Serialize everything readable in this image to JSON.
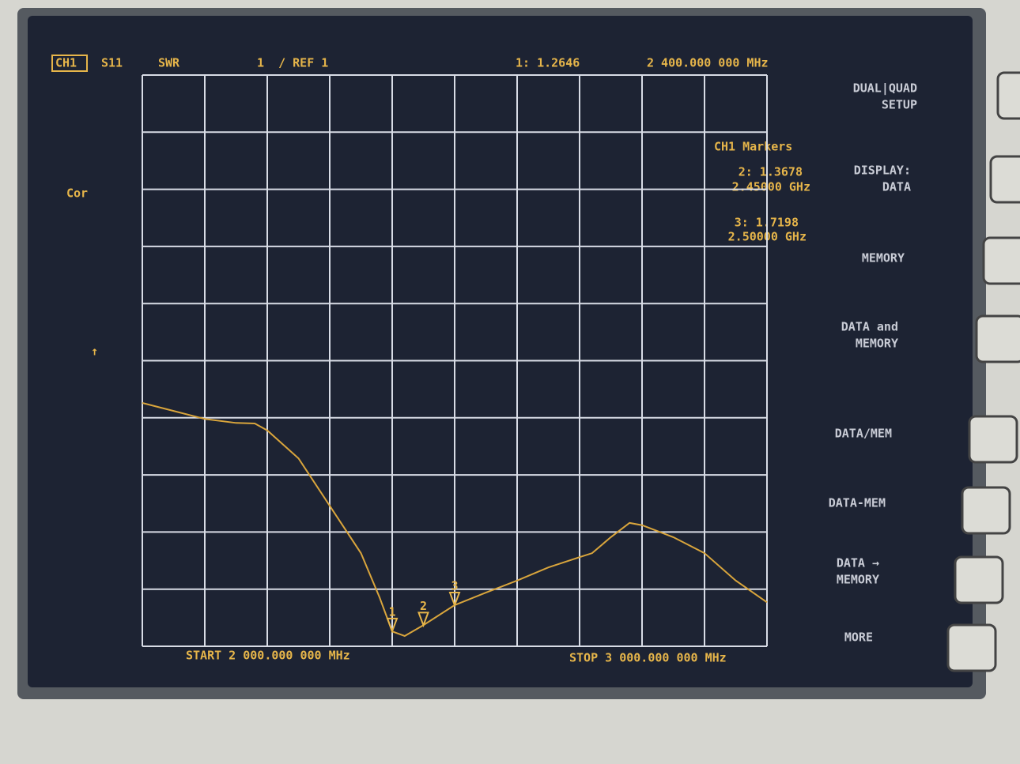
{
  "header": {
    "channel": "CH1",
    "param": "S11",
    "format": "SWR",
    "scale": "1  / REF 1",
    "marker_readout": "1: 1.2646",
    "marker_freq": "2 400.000 000 MHz"
  },
  "status": {
    "cor": "Cor",
    "ref_arrow": "↑"
  },
  "marker_table": {
    "title": "CH1 Markers",
    "rows": [
      {
        "value": "2: 1.3678",
        "freq": "2.45000 GHz"
      },
      {
        "value": "3: 1.7198",
        "freq": "2.50000 GHz"
      }
    ]
  },
  "softkeys": [
    [
      "DUAL|QUAD",
      "SETUP"
    ],
    [
      "DISPLAY:",
      "DATA"
    ],
    [
      "MEMORY"
    ],
    [
      "DATA and",
      "MEMORY"
    ],
    [
      "DATA/MEM"
    ],
    [
      "DATA-MEM"
    ],
    [
      "DATA →",
      "MEMORY"
    ],
    [
      "MORE"
    ]
  ],
  "footer": {
    "start": "START 2 000.000 000 MHz",
    "stop": "STOP 3 000.000 000 MHz"
  },
  "chart_data": {
    "type": "line",
    "color": "#d9a53c",
    "x": [
      2,
      2.05,
      2.1,
      2.15,
      2.18,
      2.2,
      2.25,
      2.3,
      2.35,
      2.38,
      2.4,
      2.42,
      2.45,
      2.5,
      2.55,
      2.6,
      2.65,
      2.7,
      2.72,
      2.75,
      2.78,
      2.8,
      2.85,
      2.9,
      2.95,
      3.0
    ],
    "values": [
      5.26,
      5.12,
      4.98,
      4.91,
      4.9,
      4.78,
      4.29,
      3.46,
      2.63,
      1.85,
      1.26,
      1.18,
      1.37,
      1.72,
      1.94,
      2.15,
      2.38,
      2.56,
      2.63,
      2.91,
      3.16,
      3.12,
      2.91,
      2.63,
      2.15,
      1.77
    ],
    "xlim": [
      2,
      3
    ],
    "ylim": [
      1,
      11
    ],
    "markers": [
      {
        "label": "1",
        "x": 2.4,
        "value": 1.2646
      },
      {
        "label": "2",
        "x": 2.45,
        "value": 1.3678
      },
      {
        "label": "3",
        "x": 2.5,
        "value": 1.7198
      }
    ]
  }
}
